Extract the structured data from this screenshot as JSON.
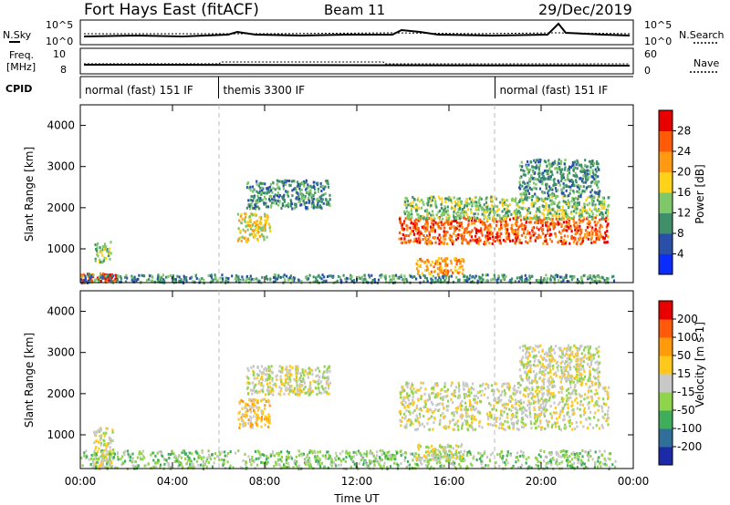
{
  "header": {
    "title": "Fort Hays East (fitACF)",
    "beam": "Beam 11",
    "date": "29/Dec/2019"
  },
  "noise_panel": {
    "left_label": "N.Sky",
    "left_ticks": [
      "10^5",
      "10^0"
    ],
    "right_label": "N.Search",
    "right_ticks": [
      "10^5",
      "10^0"
    ]
  },
  "freq_panel": {
    "left_label_1": "Freq.",
    "left_label_2": "[MHz]",
    "left_ticks": [
      "10",
      "8"
    ],
    "right_label": "Nave",
    "right_ticks": [
      "60",
      "0"
    ]
  },
  "cpid": {
    "label": "CPID",
    "segments": [
      {
        "start_h": 0,
        "end_h": 6,
        "text": "normal (fast) 151 IF"
      },
      {
        "start_h": 6,
        "end_h": 18,
        "text": "themis 3300 IF"
      },
      {
        "start_h": 18,
        "end_h": 24,
        "text": "normal (fast) 151 IF"
      }
    ]
  },
  "chart_data": [
    {
      "type": "heatmap",
      "name": "power",
      "ylabel": "Slant Range [km]",
      "ylim": [
        180,
        4500
      ],
      "yticks": [
        "1000",
        "2000",
        "3000",
        "4000"
      ],
      "xlim_hours": [
        0,
        24
      ],
      "colorbar_label": "Power [dB]",
      "colorbar_ticks": [
        "4",
        "8",
        "12",
        "16",
        "20",
        "24",
        "28"
      ],
      "colorbar_colors": [
        "#0a2cff",
        "#2a4fa8",
        "#3f8f6a",
        "#7fc86a",
        "#ffd21a",
        "#ff9a12",
        "#ff5a08",
        "#e80000"
      ],
      "regions": [
        {
          "t": [
            0.0,
            1.2
          ],
          "r": [
            200,
            450
          ],
          "level": 6
        },
        {
          "t": [
            0.6,
            1.3
          ],
          "r": [
            700,
            1200
          ],
          "level": 3
        },
        {
          "t": [
            1.0,
            1.6
          ],
          "r": [
            250,
            400
          ],
          "level": 7
        },
        {
          "t": [
            0.0,
            23.2
          ],
          "r": [
            200,
            400
          ],
          "level": 2
        },
        {
          "t": [
            6.8,
            8.2
          ],
          "r": [
            1200,
            1900
          ],
          "level": 4
        },
        {
          "t": [
            7.2,
            10.8
          ],
          "r": [
            2000,
            2700
          ],
          "level": 2
        },
        {
          "t": [
            13.8,
            22.9
          ],
          "r": [
            1150,
            1800
          ],
          "level": 6
        },
        {
          "t": [
            14.0,
            22.9
          ],
          "r": [
            1750,
            2300
          ],
          "level": 3
        },
        {
          "t": [
            14.5,
            16.6
          ],
          "r": [
            400,
            800
          ],
          "level": 5
        },
        {
          "t": [
            19.0,
            22.5
          ],
          "r": [
            2300,
            3200
          ],
          "level": 2
        }
      ]
    },
    {
      "type": "heatmap",
      "name": "velocity",
      "ylabel": "Slant Range [km]",
      "ylim": [
        180,
        4500
      ],
      "yticks": [
        "1000",
        "2000",
        "3000",
        "4000"
      ],
      "xlim_hours": [
        0,
        24
      ],
      "xticks": [
        "00:00",
        "04:00",
        "08:00",
        "12:00",
        "16:00",
        "20:00",
        "00:00"
      ],
      "xlabel": "Time UT",
      "colorbar_label": "Velocity [m s-1]",
      "colorbar_ticks": [
        "200",
        "100",
        "50",
        "15",
        "-15",
        "-50",
        "-100",
        "-200"
      ],
      "colorbar_colors": [
        "#1a2aa8",
        "#2f6f9a",
        "#3fae5a",
        "#8fd44a",
        "#c8c8c8",
        "#ffc81a",
        "#ff9a0a",
        "#ff5a0a",
        "#e80000"
      ],
      "regions": [
        {
          "t": [
            0.5,
            1.4
          ],
          "r": [
            200,
            1200
          ],
          "level": 4
        },
        {
          "t": [
            0.0,
            23.2
          ],
          "r": [
            200,
            650
          ],
          "level": 3
        },
        {
          "t": [
            6.8,
            8.2
          ],
          "r": [
            1200,
            1900
          ],
          "level": 5
        },
        {
          "t": [
            7.2,
            10.8
          ],
          "r": [
            2000,
            2700
          ],
          "level": 4
        },
        {
          "t": [
            13.8,
            22.9
          ],
          "r": [
            1150,
            2300
          ],
          "level": 4
        },
        {
          "t": [
            14.5,
            16.6
          ],
          "r": [
            400,
            800
          ],
          "level": 4
        },
        {
          "t": [
            19.0,
            22.5
          ],
          "r": [
            2300,
            3200
          ],
          "level": 4
        }
      ]
    }
  ]
}
